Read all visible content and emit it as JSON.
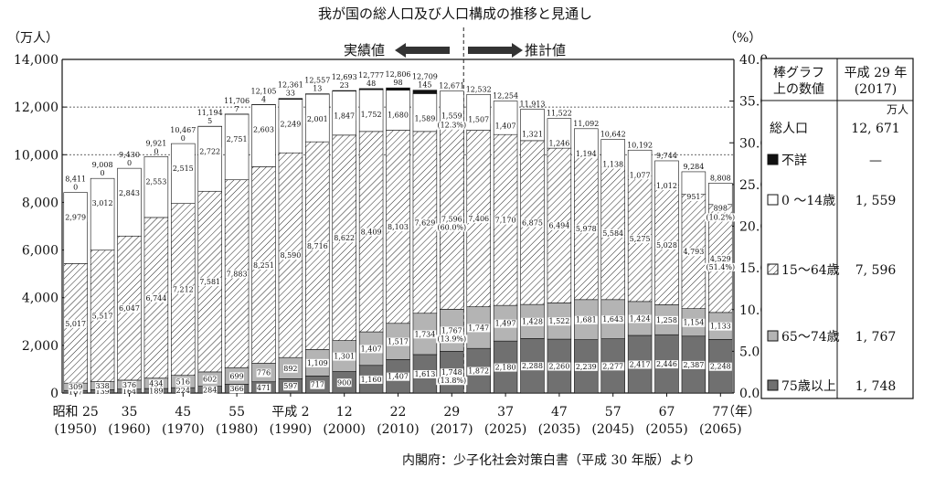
{
  "chart_data": {
    "type": "bar",
    "title": "我が国の総人口及び人口構成の推移と見通し",
    "y_left_unit": "（万人）",
    "y_right_unit": "（%）",
    "y_left_ticks": [
      "0",
      "2,000",
      "4,000",
      "6,000",
      "8,000",
      "10,000",
      "12,000",
      "14,000"
    ],
    "y_right_ticks": [
      "0.0",
      "5.0",
      "10.0",
      "15.0",
      "20.0",
      "25.0",
      "30.0",
      "35.0",
      "40.0"
    ],
    "ylim_left": [
      0,
      14000
    ],
    "ylim_right": [
      0,
      40
    ],
    "x_unit": "（年）",
    "x_axis_labels": [
      {
        "era": "昭和 25",
        "year": "(1950)"
      },
      {
        "era": "35",
        "year": "(1960)"
      },
      {
        "era": "45",
        "year": "(1970)"
      },
      {
        "era": "55",
        "year": "(1980)"
      },
      {
        "era": "平成 2",
        "year": "(1990)"
      },
      {
        "era": "12",
        "year": "(2000)"
      },
      {
        "era": "22",
        "year": "(2010)"
      },
      {
        "era": "29",
        "year": "(2017)"
      },
      {
        "era": "37",
        "year": "(2025)"
      },
      {
        "era": "47",
        "year": "(2035)"
      },
      {
        "era": "57",
        "year": "(2045)"
      },
      {
        "era": "67",
        "year": "(2055)"
      },
      {
        "era": "77",
        "year": "(2065)"
      }
    ],
    "actual_label": "実績値",
    "projected_label": "推計値",
    "source": "内閣府：少子化社会対策白書（平成 30 年版）より",
    "categories": [
      "1950",
      "1955",
      "1960",
      "1965",
      "1970",
      "1975",
      "1980",
      "1985",
      "1990",
      "1995",
      "2000",
      "2005",
      "2010",
      "2015",
      "2017",
      "2020",
      "2025",
      "2030",
      "2035",
      "2040",
      "2045",
      "2050",
      "2055",
      "2060",
      "2065"
    ],
    "series": [
      {
        "name": "75歳以上",
        "color": "#707070",
        "values": [
          107,
          139,
          164,
          189,
          224,
          284,
          366,
          471,
          597,
          717,
          900,
          1160,
          1407,
          1613,
          1748,
          1872,
          2180,
          2288,
          2260,
          2239,
          2277,
          2417,
          2446,
          2387,
          2248
        ]
      },
      {
        "name": "65〜74歳",
        "color": "#b4b4b4",
        "values": [
          309,
          338,
          376,
          434,
          516,
          602,
          699,
          776,
          892,
          1109,
          1301,
          1407,
          1517,
          1734,
          1767,
          1747,
          1497,
          1428,
          1522,
          1681,
          1643,
          1424,
          1258,
          1154,
          1133
        ]
      },
      {
        "name": "15〜64歳",
        "color": "hatch",
        "values": [
          5017,
          5517,
          6047,
          6744,
          7212,
          7581,
          7883,
          8251,
          8590,
          8716,
          8622,
          8409,
          8103,
          7629,
          7596,
          7406,
          7170,
          6875,
          6494,
          5978,
          5584,
          5275,
          5028,
          4793,
          4529
        ]
      },
      {
        "name": "0〜14歳",
        "color": "#ffffff",
        "values": [
          2979,
          3012,
          2843,
          2553,
          2515,
          2722,
          2751,
          2603,
          2249,
          2001,
          1847,
          1752,
          1680,
          1589,
          1559,
          1507,
          1407,
          1321,
          1246,
          1194,
          1138,
          1077,
          1012,
          951,
          898
        ]
      },
      {
        "name": "不詳",
        "color": "#111111",
        "values": [
          0,
          0,
          0,
          0,
          0,
          5,
          7,
          4,
          33,
          13,
          23,
          48,
          98,
          145,
          0,
          0,
          0,
          0,
          0,
          0,
          0,
          0,
          0,
          0,
          0
        ]
      }
    ],
    "totals": [
      "8,411",
      "9,008",
      "9,430",
      "9,921",
      "10,467",
      "11,194",
      "11,706",
      "12,105",
      "12,361",
      "12,557",
      "12,693",
      "12,777",
      "12,806",
      "12,709",
      "12,671",
      "12,532",
      "12,254",
      "11,913",
      "11,522",
      "11,092",
      "10,642",
      "10,192",
      "9,744",
      "9,284",
      "8,808"
    ],
    "labels": {
      "b75": [
        "107",
        "139",
        "164",
        "189",
        "224",
        "284",
        "366",
        "471",
        "597",
        "717",
        "900",
        "1,160",
        "1,407",
        "1,613",
        "1,748",
        "1,872",
        "2,180",
        "2,288",
        "2,260",
        "2,239",
        "2,277",
        "2,417",
        "2,446",
        "2,387",
        "2,248"
      ],
      "b6574": [
        "309",
        "338",
        "376",
        "434",
        "516",
        "602",
        "699",
        "776",
        "892",
        "1,109",
        "1,301",
        "1,407",
        "1,517",
        "1,734",
        "1,767",
        "1,747",
        "1,497",
        "1,428",
        "1,522",
        "1,681",
        "1,643",
        "1,424",
        "1,258",
        "1,154",
        "1,133"
      ],
      "b1564": [
        "5,017",
        "5,517",
        "6,047",
        "6,744",
        "7,212",
        "7,581",
        "7,883",
        "8,251",
        "8,590",
        "8,716",
        "8,622",
        "8,409",
        "8,103",
        "7,629",
        "7,596",
        "7,406",
        "7,170",
        "6,875",
        "6,494",
        "5,978",
        "5,584",
        "5,275",
        "5,028",
        "4,793",
        "4,529"
      ],
      "b014": [
        "2,979",
        "3,012",
        "2,843",
        "2,553",
        "2,515",
        "2,722",
        "2,751",
        "2,603",
        "2,249",
        "2,001",
        "1,847",
        "1,752",
        "1,680",
        "1,589",
        "1,559",
        "1,507",
        "1,407",
        "1,321",
        "1,246",
        "1,194",
        "1,138",
        "1,077",
        "1,012",
        "951",
        "898"
      ],
      "unknown": [
        "0",
        "0",
        "0",
        "0",
        "0",
        "5",
        "7",
        "4",
        "33",
        "13",
        "23",
        "48",
        "98",
        "145",
        "",
        "",
        "",
        "",
        "",
        "",
        "",
        "",
        "",
        "",
        ""
      ]
    },
    "percent_labels": [
      {
        "index": 14,
        "segment": "75歳以上",
        "text": "(13.8%)"
      },
      {
        "index": 14,
        "segment": "65〜74歳",
        "text": "(13.9%)"
      },
      {
        "index": 14,
        "segment": "15〜64歳",
        "text": "(60.0%)"
      },
      {
        "index": 14,
        "segment": "0〜14歳",
        "text": "(12.3%)"
      },
      {
        "index": 24,
        "segment": "15〜64歳",
        "text": "(51.4%)"
      },
      {
        "index": 24,
        "segment": "0〜14歳",
        "text": "(10.2%)"
      }
    ],
    "legend": {
      "header_left": "棒グラフ上の数値",
      "header_right": "平成 29 年（2017）",
      "unit": "万人",
      "rows": [
        {
          "label": "総人口",
          "value": "12, 671",
          "swatch": "none"
        },
        {
          "label": "不詳",
          "value": "—",
          "swatch": "#111111"
        },
        {
          "label": "0 〜14歳",
          "value": "1, 559",
          "swatch": "#ffffff"
        },
        {
          "label": "15〜64歳",
          "value": "7, 596",
          "swatch": "hatch"
        },
        {
          "label": "65〜74歳",
          "value": "1, 767",
          "swatch": "#b4b4b4"
        },
        {
          "label": "75歳以上",
          "value": "1, 748",
          "swatch": "#707070"
        }
      ]
    },
    "grid": "dotted at 10,000 and 12,000",
    "legend_position": "right"
  }
}
